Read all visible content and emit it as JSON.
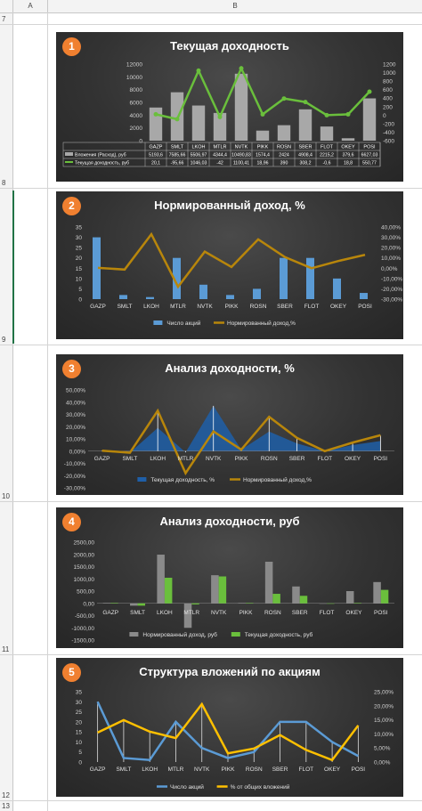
{
  "sheet": {
    "columns": [
      "A",
      "B"
    ],
    "rows": [
      "7",
      "8",
      "9",
      "10",
      "11",
      "12",
      "13"
    ]
  },
  "charts": [
    {
      "badge": "1",
      "title": "Текущая доходность",
      "chart_data": {
        "type": "bar",
        "categories": [
          "GAZP",
          "SMLT",
          "LKOH",
          "MTLR",
          "NVTK",
          "PIKK",
          "ROSN",
          "SBER",
          "FLOT",
          "OKEY",
          "POSI"
        ],
        "left_ticks": [
          "12000",
          "10000",
          "8000",
          "6000",
          "4000",
          "2000",
          "0"
        ],
        "right_ticks": [
          "1200",
          "1000",
          "800",
          "600",
          "400",
          "200",
          "0",
          "-200",
          "-400",
          "-600"
        ],
        "ylim": [
          0,
          12000
        ],
        "y2lim": [
          -600,
          1200
        ],
        "series": [
          {
            "name": "Вложения (Расход), руб",
            "type": "bar",
            "axis": "left",
            "color": "#a8a8a8",
            "values": [
              5193.6,
              7585.66,
              5506.97,
              4344.4,
              10490.83,
              1574.4,
              2424,
              4908.4,
              2215.2,
              379.6,
              6627.03
            ],
            "labels": [
              "5193,6",
              "7585,66",
              "5506,97",
              "4344,4",
              "10490,83",
              "1574,4",
              "2424",
              "4908,4",
              "2215,2",
              "379,6",
              "6627,03"
            ]
          },
          {
            "name": "Текущая доходность, руб",
            "type": "line",
            "axis": "right",
            "color": "#6abf3c",
            "values": [
              20.1,
              -95.66,
              1046.03,
              -42,
              1100.41,
              18.96,
              390,
              308.2,
              -0.6,
              18.8,
              550.77
            ],
            "labels": [
              "20,1",
              "-95,66",
              "1046,03",
              "-42",
              "1100,41",
              "18,96",
              "390",
              "308,2",
              "-0,6",
              "18,8",
              "550,77"
            ]
          }
        ]
      }
    },
    {
      "badge": "2",
      "title": "Нормированный доход, %",
      "chart_data": {
        "type": "bar",
        "categories": [
          "GAZP",
          "SMLT",
          "LKOH",
          "MTLR",
          "NVTK",
          "PIKK",
          "ROSN",
          "SBER",
          "FLOT",
          "OKEY",
          "POSI"
        ],
        "left_ticks": [
          "35",
          "30",
          "25",
          "20",
          "15",
          "10",
          "5",
          "0"
        ],
        "right_ticks": [
          "40,00%",
          "30,00%",
          "20,00%",
          "10,00%",
          "0,00%",
          "-10,00%",
          "-20,00%",
          "-30,00%"
        ],
        "ylim": [
          0,
          35
        ],
        "y2lim": [
          -30,
          40
        ],
        "series": [
          {
            "name": "Число акций",
            "type": "bar",
            "axis": "left",
            "color": "#5b9bd5",
            "values": [
              30,
              2,
              1,
              20,
              7,
              2,
              5,
              20,
              20,
              10,
              3
            ]
          },
          {
            "name": "Нормированный доход,%",
            "type": "line",
            "axis": "right",
            "color": "#b8860b",
            "values": [
              0.4,
              -1.3,
              33,
              -18,
              16.1,
              1.2,
              28,
              10.8,
              0,
              7,
              13
            ]
          }
        ]
      }
    },
    {
      "badge": "3",
      "title": "Анализ доходности, %",
      "chart_data": {
        "type": "area",
        "categories": [
          "GAZP",
          "SMLT",
          "LKOH",
          "MTLR",
          "NVTK",
          "PIKK",
          "ROSN",
          "SBER",
          "FLOT",
          "OKEY",
          "POSI"
        ],
        "left_ticks": [
          "50,00%",
          "40,00%",
          "30,00%",
          "20,00%",
          "10,00%",
          "0,00%",
          "-10,00%",
          "-20,00%",
          "-30,00%"
        ],
        "ylim": [
          -30,
          50
        ],
        "series": [
          {
            "name": "Текущая доходность, %",
            "type": "area",
            "color": "#1f5fa8",
            "values": [
              0.4,
              -1.3,
              19,
              -1,
              37,
              1.2,
              16,
              6.3,
              0,
              5,
              8.3
            ]
          },
          {
            "name": "Нормированный доход,%",
            "type": "line",
            "color": "#b8860b",
            "values": [
              0.4,
              -1.3,
              33,
              -18,
              16.1,
              1.2,
              28,
              10.8,
              0,
              7,
              13
            ]
          }
        ]
      }
    },
    {
      "badge": "4",
      "title": "Анализ доходности, руб",
      "chart_data": {
        "type": "bar",
        "categories": [
          "GAZP",
          "SMLT",
          "LKOH",
          "MTLR",
          "NVTK",
          "PIKK",
          "ROSN",
          "SBER",
          "FLOT",
          "OKEY",
          "POSI"
        ],
        "left_ticks": [
          "2500,00",
          "2000,00",
          "1500,00",
          "1000,00",
          "500,00",
          "0,00",
          "-500,00",
          "-1000,00",
          "-1500,00"
        ],
        "ylim": [
          -1500,
          2500
        ],
        "series": [
          {
            "name": "Нормированный доход, руб",
            "type": "bar",
            "color": "#8a8a8a",
            "values": [
              20,
              -95,
              1990,
              -1000,
              1150,
              19,
              1700,
              690,
              -1,
              500,
              870
            ]
          },
          {
            "name": "Текущая доходность, руб",
            "type": "bar",
            "color": "#6abf3c",
            "values": [
              20,
              -95,
              1046,
              -42,
              1100,
              19,
              390,
              308,
              -1,
              19,
              551
            ]
          }
        ]
      }
    },
    {
      "badge": "5",
      "title": "Структура вложений по акциям",
      "chart_data": {
        "type": "line",
        "categories": [
          "GAZP",
          "SMLT",
          "LKOH",
          "MTLR",
          "NVTK",
          "PIKK",
          "ROSN",
          "SBER",
          "FLOT",
          "OKEY",
          "POSI"
        ],
        "left_ticks": [
          "35",
          "30",
          "25",
          "20",
          "15",
          "10",
          "5",
          "0"
        ],
        "right_ticks": [
          "25,00%",
          "20,00%",
          "15,00%",
          "10,00%",
          "5,00%",
          "0,00%"
        ],
        "ylim": [
          0,
          35
        ],
        "y2lim": [
          0,
          25
        ],
        "series": [
          {
            "name": "Число акций",
            "type": "line",
            "axis": "left",
            "color": "#5b9bd5",
            "values": [
              30,
              2,
              1,
              20,
              7,
              2,
              5,
              20,
              20,
              10,
              3
            ]
          },
          {
            "name": "% от общих вложений",
            "type": "line",
            "axis": "right",
            "color": "#ffc000",
            "values": [
              10.5,
              14.9,
              10.8,
              8.5,
              20.6,
              3.1,
              4.8,
              9.6,
              4.3,
              0.7,
              13
            ]
          }
        ]
      }
    }
  ]
}
